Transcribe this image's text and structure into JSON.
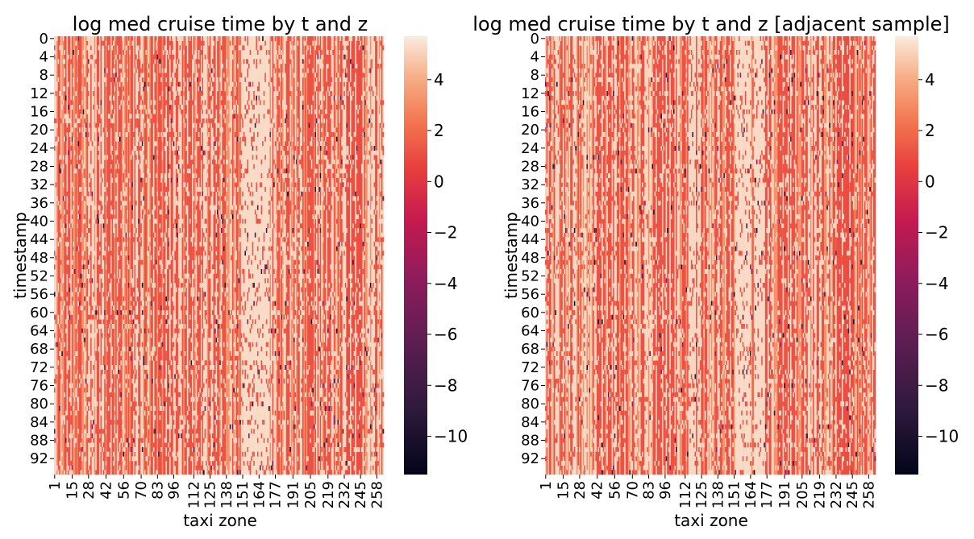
{
  "chart_data": [
    {
      "type": "heatmap",
      "title": "log med cruise time by t and z",
      "xlabel": "taxi zone",
      "ylabel": "timestamp",
      "x_tick_labels": [
        "1",
        "15",
        "28",
        "42",
        "56",
        "70",
        "83",
        "96",
        "112",
        "125",
        "138",
        "151",
        "164",
        "177",
        "191",
        "205",
        "219",
        "232",
        "245",
        "258"
      ],
      "y_tick_labels": [
        "0",
        "4",
        "8",
        "12",
        "16",
        "20",
        "24",
        "28",
        "32",
        "36",
        "40",
        "44",
        "48",
        "52",
        "56",
        "60",
        "64",
        "68",
        "72",
        "76",
        "80",
        "84",
        "88",
        "92"
      ],
      "n_rows": 96,
      "n_cols": 263,
      "value_range": [
        -11.5,
        5.7
      ],
      "typical_value": 1.2,
      "colorbar_ticks": [
        4,
        2,
        0,
        -2,
        -4,
        -6,
        -8,
        -10
      ],
      "colorbar_tick_labels": [
        "4",
        "2",
        "0",
        "−2",
        "−4",
        "−6",
        "−8",
        "−10"
      ],
      "colormap": "rocket",
      "grid": false
    },
    {
      "type": "heatmap",
      "title": "log med cruise time by t and z [adjacent sample]",
      "xlabel": "taxi zone",
      "ylabel": "timestamp",
      "x_tick_labels": [
        "1",
        "15",
        "28",
        "42",
        "56",
        "70",
        "83",
        "96",
        "112",
        "125",
        "138",
        "151",
        "164",
        "177",
        "191",
        "205",
        "219",
        "232",
        "245",
        "258"
      ],
      "y_tick_labels": [
        "0",
        "4",
        "8",
        "12",
        "16",
        "20",
        "24",
        "28",
        "32",
        "36",
        "40",
        "44",
        "48",
        "52",
        "56",
        "60",
        "64",
        "68",
        "72",
        "76",
        "80",
        "84",
        "88",
        "92"
      ],
      "n_rows": 96,
      "n_cols": 263,
      "value_range": [
        -11.5,
        5.7
      ],
      "typical_value": 1.2,
      "colorbar_ticks": [
        4,
        2,
        0,
        -2,
        -4,
        -6,
        -8,
        -10
      ],
      "colorbar_tick_labels": [
        "4",
        "2",
        "0",
        "−2",
        "−4",
        "−6",
        "−8",
        "−10"
      ],
      "colormap": "rocket",
      "grid": false
    }
  ]
}
